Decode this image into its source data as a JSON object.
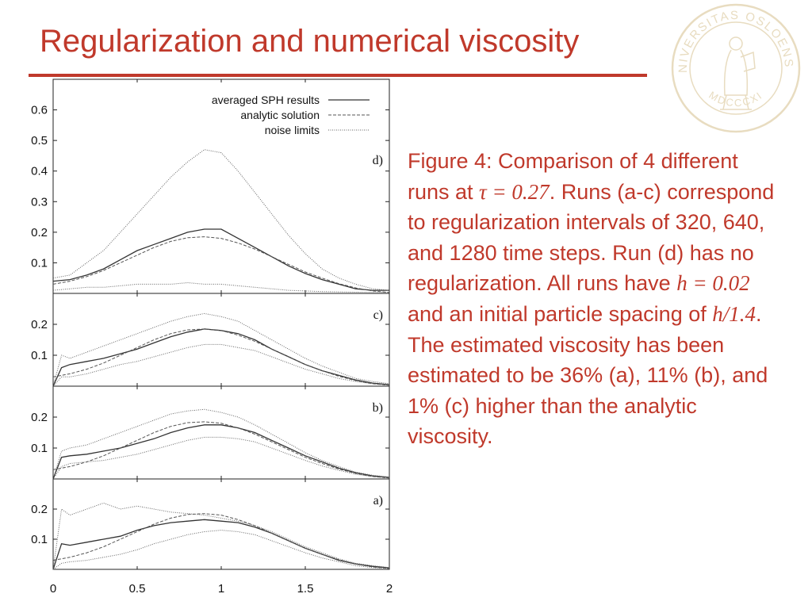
{
  "slide": {
    "title": "Regularization and numerical viscosity",
    "accent_color": "#c0392b",
    "seal": {
      "icon": "university-of-oslo-seal-icon",
      "text_top": "UNIVERSITAS OSLOENSIS",
      "text_bottom": "MDCCCXI",
      "color": "#e8dcc0"
    }
  },
  "caption": {
    "parts": [
      {
        "text": "Figure 4: Comparison of 4 different runs at ",
        "math": false
      },
      {
        "text": "τ = 0.27",
        "math": true
      },
      {
        "text": ". Runs (a-c) correspond to regularization intervals of 320, 640, and 1280 time steps. Run (d) has no regularization. All runs have ",
        "math": false
      },
      {
        "text": "h = 0.02",
        "math": true
      },
      {
        "text": " and an initial particle spacing of ",
        "math": false
      },
      {
        "text": "h/1.4",
        "math": true
      },
      {
        "text": ". The estimated viscosity has been estimated to be 36% (a), 11% (b), and 1% (c) higher than the analytic viscosity.",
        "math": false
      }
    ]
  },
  "chart_data": {
    "type": "line",
    "legend": {
      "placement": "top-right",
      "entries": [
        {
          "label": "averaged SPH results",
          "style": "solid"
        },
        {
          "label": "analytic solution",
          "style": "dashed"
        },
        {
          "label": "noise limits",
          "style": "dotted"
        }
      ]
    },
    "x_axis": {
      "range": [
        0,
        2
      ],
      "ticks": [
        "0",
        "0.5",
        "1",
        "1.5",
        "2"
      ]
    },
    "panels": [
      {
        "label": "d)",
        "ylim": [
          0,
          0.7
        ],
        "y_ticks": [
          0.1,
          0.2,
          0.3,
          0.4,
          0.5,
          0.6
        ],
        "y_tick_labels": [
          "0.1",
          "0.2",
          "0.3",
          "0.4",
          "0.5",
          "0.6"
        ],
        "series": [
          {
            "name": "averaged SPH results",
            "x": [
              0,
              0.1,
              0.2,
              0.3,
              0.4,
              0.5,
              0.6,
              0.7,
              0.8,
              0.9,
              1.0,
              1.1,
              1.2,
              1.3,
              1.4,
              1.5,
              1.6,
              1.7,
              1.8,
              1.9,
              2.0
            ],
            "y": [
              0.04,
              0.045,
              0.06,
              0.08,
              0.11,
              0.14,
              0.16,
              0.18,
              0.2,
              0.21,
              0.21,
              0.18,
              0.15,
              0.12,
              0.09,
              0.065,
              0.045,
              0.03,
              0.015,
              0.01,
              0.01
            ]
          },
          {
            "name": "analytic solution",
            "x": [
              0,
              0.1,
              0.2,
              0.3,
              0.4,
              0.5,
              0.6,
              0.7,
              0.8,
              0.9,
              1.0,
              1.1,
              1.2,
              1.3,
              1.4,
              1.5,
              1.6,
              1.7,
              1.8,
              1.9,
              2.0
            ],
            "y": [
              0.03,
              0.04,
              0.055,
              0.075,
              0.1,
              0.125,
              0.15,
              0.17,
              0.182,
              0.185,
              0.18,
              0.165,
              0.145,
              0.12,
              0.095,
              0.07,
              0.05,
              0.032,
              0.018,
              0.008,
              0.003
            ]
          },
          {
            "name": "noise limits (upper)",
            "x": [
              0,
              0.1,
              0.2,
              0.3,
              0.4,
              0.5,
              0.6,
              0.7,
              0.8,
              0.9,
              1.0,
              1.1,
              1.2,
              1.3,
              1.4,
              1.5,
              1.6,
              1.7,
              1.8,
              1.9,
              2.0
            ],
            "y": [
              0.05,
              0.06,
              0.1,
              0.14,
              0.2,
              0.26,
              0.32,
              0.38,
              0.43,
              0.47,
              0.46,
              0.4,
              0.33,
              0.26,
              0.19,
              0.13,
              0.08,
              0.05,
              0.03,
              0.015,
              0.01
            ]
          },
          {
            "name": "noise limits (lower)",
            "x": [
              0,
              0.1,
              0.2,
              0.3,
              0.4,
              0.5,
              0.6,
              0.7,
              0.8,
              0.9,
              1.0,
              1.1,
              1.2,
              1.3,
              1.4,
              1.5,
              1.6,
              1.7,
              1.8,
              1.9,
              2.0
            ],
            "y": [
              0.01,
              0.015,
              0.02,
              0.02,
              0.025,
              0.03,
              0.03,
              0.03,
              0.035,
              0.03,
              0.03,
              0.025,
              0.02,
              0.015,
              0.01,
              0.008,
              0.006,
              0.005,
              0.004,
              0.003,
              0.003
            ]
          }
        ]
      },
      {
        "label": "c)",
        "ylim": [
          0,
          0.3
        ],
        "y_ticks": [
          0.1,
          0.2
        ],
        "y_tick_labels": [
          "0.1",
          "0.2"
        ],
        "series": [
          {
            "name": "averaged SPH results",
            "x": [
              0,
              0.05,
              0.1,
              0.2,
              0.3,
              0.4,
              0.5,
              0.6,
              0.7,
              0.8,
              0.9,
              1.0,
              1.1,
              1.2,
              1.3,
              1.4,
              1.5,
              1.6,
              1.7,
              1.8,
              1.9,
              2.0
            ],
            "y": [
              0.0,
              0.06,
              0.07,
              0.08,
              0.09,
              0.105,
              0.12,
              0.14,
              0.16,
              0.175,
              0.185,
              0.18,
              0.17,
              0.15,
              0.12,
              0.095,
              0.07,
              0.05,
              0.035,
              0.02,
              0.01,
              0.005
            ]
          },
          {
            "name": "analytic solution",
            "x": [
              0,
              0.1,
              0.2,
              0.3,
              0.4,
              0.5,
              0.6,
              0.7,
              0.8,
              0.9,
              1.0,
              1.1,
              1.2,
              1.3,
              1.4,
              1.5,
              1.6,
              1.7,
              1.8,
              1.9,
              2.0
            ],
            "y": [
              0.03,
              0.04,
              0.055,
              0.075,
              0.1,
              0.125,
              0.15,
              0.17,
              0.182,
              0.185,
              0.18,
              0.165,
              0.145,
              0.12,
              0.095,
              0.07,
              0.05,
              0.032,
              0.018,
              0.008,
              0.003
            ]
          },
          {
            "name": "noise limits (upper)",
            "x": [
              0,
              0.05,
              0.1,
              0.2,
              0.3,
              0.4,
              0.5,
              0.6,
              0.7,
              0.8,
              0.9,
              1.0,
              1.1,
              1.2,
              1.3,
              1.4,
              1.5,
              1.6,
              1.7,
              1.8,
              1.9,
              2.0
            ],
            "y": [
              0.0,
              0.1,
              0.09,
              0.11,
              0.13,
              0.15,
              0.17,
              0.19,
              0.21,
              0.225,
              0.235,
              0.225,
              0.21,
              0.18,
              0.15,
              0.12,
              0.09,
              0.065,
              0.045,
              0.025,
              0.015,
              0.008
            ]
          },
          {
            "name": "noise limits (lower)",
            "x": [
              0,
              0.05,
              0.1,
              0.2,
              0.3,
              0.4,
              0.5,
              0.6,
              0.7,
              0.8,
              0.9,
              1.0,
              1.1,
              1.2,
              1.3,
              1.4,
              1.5,
              1.6,
              1.7,
              1.8,
              1.9,
              2.0
            ],
            "y": [
              0.0,
              0.03,
              0.03,
              0.04,
              0.055,
              0.07,
              0.08,
              0.095,
              0.11,
              0.125,
              0.135,
              0.135,
              0.125,
              0.115,
              0.095,
              0.075,
              0.055,
              0.04,
              0.025,
              0.015,
              0.008,
              0.003
            ]
          }
        ]
      },
      {
        "label": "b)",
        "ylim": [
          0,
          0.3
        ],
        "y_ticks": [
          0.1,
          0.2
        ],
        "y_tick_labels": [
          "0.1",
          "0.2"
        ],
        "series": [
          {
            "name": "averaged SPH results",
            "x": [
              0,
              0.05,
              0.1,
              0.2,
              0.3,
              0.4,
              0.5,
              0.6,
              0.7,
              0.8,
              0.9,
              1.0,
              1.1,
              1.2,
              1.3,
              1.4,
              1.5,
              1.6,
              1.7,
              1.8,
              1.9,
              2.0
            ],
            "y": [
              0.0,
              0.07,
              0.075,
              0.08,
              0.09,
              0.1,
              0.115,
              0.13,
              0.15,
              0.165,
              0.175,
              0.175,
              0.165,
              0.15,
              0.125,
              0.1,
              0.075,
              0.055,
              0.035,
              0.02,
              0.01,
              0.005
            ]
          },
          {
            "name": "analytic solution",
            "x": [
              0,
              0.1,
              0.2,
              0.3,
              0.4,
              0.5,
              0.6,
              0.7,
              0.8,
              0.9,
              1.0,
              1.1,
              1.2,
              1.3,
              1.4,
              1.5,
              1.6,
              1.7,
              1.8,
              1.9,
              2.0
            ],
            "y": [
              0.03,
              0.04,
              0.055,
              0.075,
              0.1,
              0.125,
              0.15,
              0.17,
              0.182,
              0.185,
              0.18,
              0.165,
              0.145,
              0.12,
              0.095,
              0.07,
              0.05,
              0.032,
              0.018,
              0.008,
              0.003
            ]
          },
          {
            "name": "noise limits (upper)",
            "x": [
              0,
              0.05,
              0.1,
              0.2,
              0.3,
              0.4,
              0.5,
              0.6,
              0.7,
              0.8,
              0.9,
              1.0,
              1.1,
              1.2,
              1.3,
              1.4,
              1.5,
              1.6,
              1.7,
              1.8,
              1.9,
              2.0
            ],
            "y": [
              0.0,
              0.09,
              0.1,
              0.11,
              0.13,
              0.15,
              0.17,
              0.19,
              0.21,
              0.22,
              0.225,
              0.215,
              0.2,
              0.175,
              0.145,
              0.115,
              0.085,
              0.06,
              0.04,
              0.022,
              0.012,
              0.006
            ]
          },
          {
            "name": "noise limits (lower)",
            "x": [
              0,
              0.05,
              0.1,
              0.2,
              0.3,
              0.4,
              0.5,
              0.6,
              0.7,
              0.8,
              0.9,
              1.0,
              1.1,
              1.2,
              1.3,
              1.4,
              1.5,
              1.6,
              1.7,
              1.8,
              1.9,
              2.0
            ],
            "y": [
              0.0,
              0.04,
              0.05,
              0.055,
              0.06,
              0.07,
              0.08,
              0.095,
              0.11,
              0.125,
              0.135,
              0.135,
              0.13,
              0.12,
              0.1,
              0.08,
              0.06,
              0.042,
              0.028,
              0.015,
              0.008,
              0.003
            ]
          }
        ]
      },
      {
        "label": "a)",
        "ylim": [
          0,
          0.3
        ],
        "y_ticks": [
          0.1,
          0.2
        ],
        "y_tick_labels": [
          "0.1",
          "0.2"
        ],
        "series": [
          {
            "name": "averaged SPH results",
            "x": [
              0,
              0.05,
              0.1,
              0.2,
              0.3,
              0.4,
              0.5,
              0.6,
              0.7,
              0.8,
              0.9,
              1.0,
              1.1,
              1.2,
              1.3,
              1.4,
              1.5,
              1.6,
              1.7,
              1.8,
              1.9,
              2.0
            ],
            "y": [
              0.0,
              0.085,
              0.08,
              0.09,
              0.1,
              0.11,
              0.13,
              0.145,
              0.155,
              0.16,
              0.165,
              0.16,
              0.155,
              0.14,
              0.12,
              0.095,
              0.07,
              0.05,
              0.03,
              0.018,
              0.01,
              0.005
            ]
          },
          {
            "name": "analytic solution",
            "x": [
              0,
              0.1,
              0.2,
              0.3,
              0.4,
              0.5,
              0.6,
              0.7,
              0.8,
              0.9,
              1.0,
              1.1,
              1.2,
              1.3,
              1.4,
              1.5,
              1.6,
              1.7,
              1.8,
              1.9,
              2.0
            ],
            "y": [
              0.03,
              0.04,
              0.055,
              0.075,
              0.1,
              0.125,
              0.15,
              0.17,
              0.182,
              0.185,
              0.18,
              0.165,
              0.145,
              0.12,
              0.095,
              0.07,
              0.05,
              0.032,
              0.018,
              0.008,
              0.003
            ]
          },
          {
            "name": "noise limits (upper)",
            "x": [
              0,
              0.05,
              0.1,
              0.2,
              0.3,
              0.4,
              0.5,
              0.6,
              0.7,
              0.8,
              0.9,
              1.0,
              1.1,
              1.2,
              1.3,
              1.4,
              1.5,
              1.6,
              1.7,
              1.8,
              1.9,
              2.0
            ],
            "y": [
              0.0,
              0.2,
              0.18,
              0.2,
              0.22,
              0.2,
              0.21,
              0.2,
              0.19,
              0.185,
              0.18,
              0.17,
              0.16,
              0.145,
              0.125,
              0.1,
              0.075,
              0.055,
              0.035,
              0.02,
              0.012,
              0.006
            ]
          },
          {
            "name": "noise limits (lower)",
            "x": [
              0,
              0.05,
              0.1,
              0.2,
              0.3,
              0.4,
              0.5,
              0.6,
              0.7,
              0.8,
              0.9,
              1.0,
              1.1,
              1.2,
              1.3,
              1.4,
              1.5,
              1.6,
              1.7,
              1.8,
              1.9,
              2.0
            ],
            "y": [
              0.0,
              0.02,
              0.025,
              0.03,
              0.04,
              0.05,
              0.065,
              0.085,
              0.1,
              0.115,
              0.125,
              0.13,
              0.125,
              0.115,
              0.095,
              0.075,
              0.055,
              0.038,
              0.025,
              0.012,
              0.006,
              0.003
            ]
          }
        ]
      }
    ]
  }
}
